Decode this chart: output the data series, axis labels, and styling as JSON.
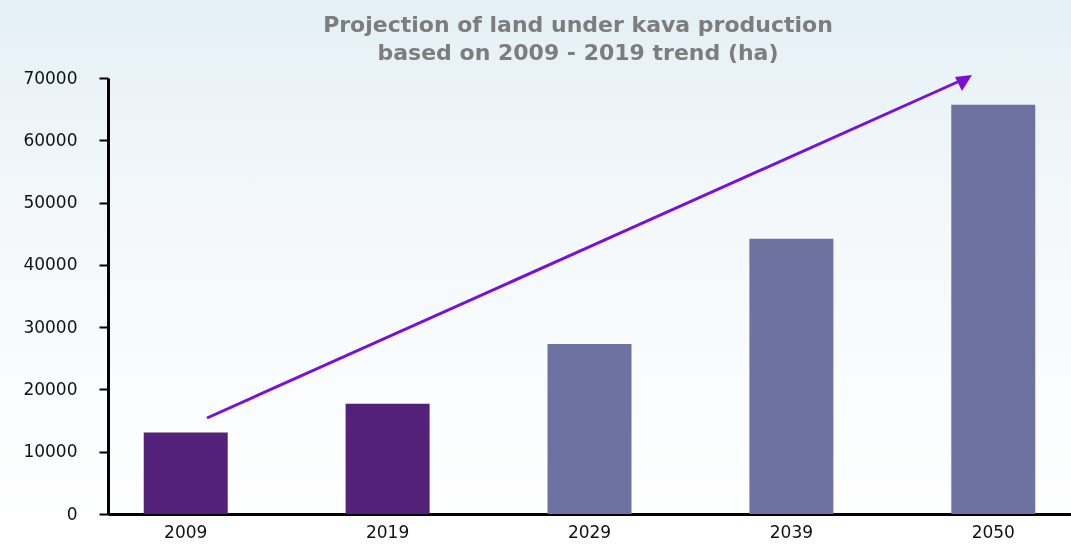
{
  "chart_data": {
    "type": "bar",
    "title": "Projection of land under kava production\nbased on 2009 - 2019 trend (ha)",
    "categories": [
      "2009",
      "2019",
      "2029",
      "2039",
      "2050"
    ],
    "values": [
      13100,
      17700,
      27300,
      44200,
      65700
    ],
    "colors": [
      "#53217a",
      "#53217a",
      "#6e72a0",
      "#6e72a0",
      "#6e72a0"
    ],
    "ylim": [
      0,
      70000
    ],
    "yticks": [
      0,
      10000,
      20000,
      30000,
      40000,
      50000,
      60000,
      70000
    ],
    "grid": false
  }
}
